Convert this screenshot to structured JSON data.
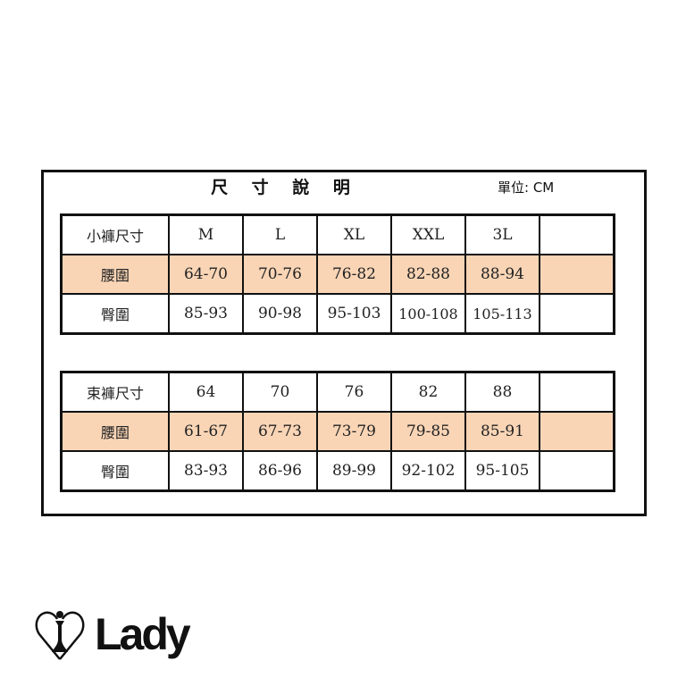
{
  "title": "尺 寸 說 明",
  "unit": "單位: CM",
  "tables": [
    {
      "header": [
        "小褲尺寸",
        "M",
        "L",
        "XL",
        "XXL",
        "3L",
        ""
      ],
      "rows": [
        {
          "label": "腰圍",
          "values": [
            "64-70",
            "70-76",
            "76-82",
            "82-88",
            "88-94",
            ""
          ],
          "highlight": true
        },
        {
          "label": "臀圍",
          "values": [
            "85-93",
            "90-98",
            "95-103",
            "100-108",
            "105-113",
            ""
          ],
          "highlight": false
        }
      ]
    },
    {
      "header": [
        "束褲尺寸",
        "64",
        "70",
        "76",
        "82",
        "88",
        ""
      ],
      "rows": [
        {
          "label": "腰圍",
          "values": [
            "61-67",
            "67-73",
            "73-79",
            "79-85",
            "85-91",
            ""
          ],
          "highlight": true
        },
        {
          "label": "臀圍",
          "values": [
            "83-93",
            "86-96",
            "89-99",
            "92-102",
            "95-105",
            ""
          ],
          "highlight": false
        }
      ]
    }
  ],
  "logo": {
    "text": "Lady"
  },
  "colors": {
    "highlight_row": "#f9d5b6",
    "border": "#111111"
  }
}
